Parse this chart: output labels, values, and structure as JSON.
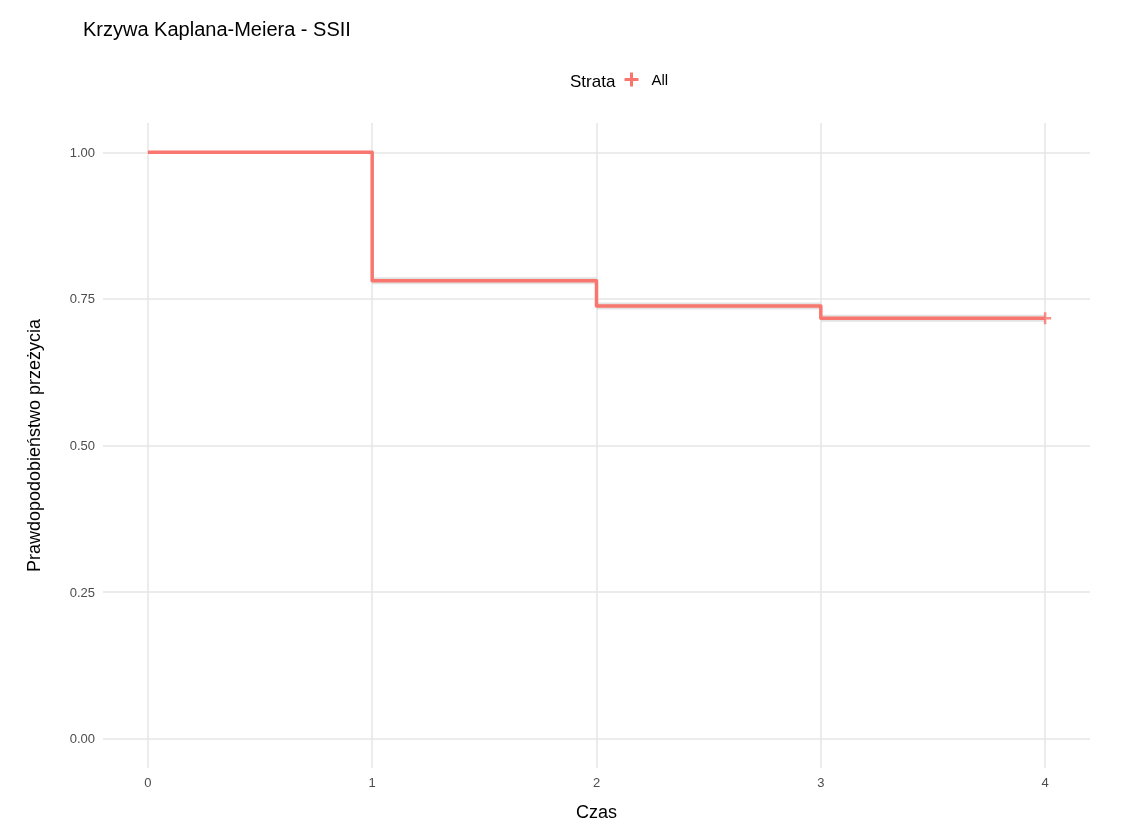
{
  "chart_data": {
    "type": "step",
    "title": "Krzywa Kaplana-Meiera - SSII",
    "xlabel": "Czas",
    "ylabel": "Prawdopodobieństwo przeżycia",
    "legend_title": "Strata",
    "legend": "top",
    "series": [
      {
        "name": "All",
        "color": "#f8766d",
        "x": [
          0,
          1,
          2,
          3,
          4
        ],
        "values": [
          1.0,
          0.781,
          0.738,
          0.717,
          0.717
        ],
        "lower": [
          1.0,
          0.775,
          0.732,
          0.711,
          0.711
        ],
        "upper": [
          1.0,
          0.787,
          0.744,
          0.723,
          0.723
        ]
      },
      {
        "type": "scatter",
        "color": "#f8766d",
        "marker": "cross",
        "x": [
          4
        ],
        "values": [
          0.717
        ]
      }
    ],
    "xlim": [
      -0.2,
      4.2
    ],
    "xticks": [
      0,
      1,
      2,
      3,
      4
    ],
    "ylim": [
      -0.05,
      1.05
    ],
    "yticks": [
      {
        "value": 0,
        "label": "0.00"
      },
      {
        "value": 0.25,
        "label": "0.25"
      },
      {
        "value": 0.5,
        "label": "0.50"
      },
      {
        "value": 0.75,
        "label": "0.75"
      },
      {
        "value": 1,
        "label": "1.00"
      }
    ],
    "grid": true
  }
}
